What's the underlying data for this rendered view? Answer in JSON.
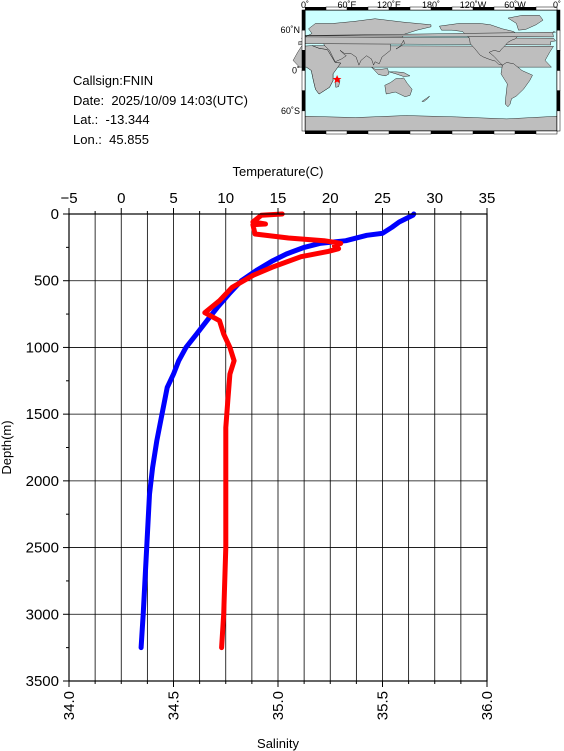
{
  "station": {
    "callsign_label": "Callsign:",
    "callsign": "FNIN",
    "date_label": "Date:",
    "date": "2025/10/09 14:03(UTC)",
    "lat_label": "Lat.:",
    "lat": "-13.344",
    "lon_label": "Lon.:",
    "lon": "45.855"
  },
  "map": {
    "lon_labels": [
      "0˚",
      "60˚E",
      "120˚E",
      "180˚",
      "120˚W",
      "60˚W",
      "0˚"
    ],
    "lat_labels": [
      "60˚N",
      "0˚",
      "60˚S"
    ],
    "ocean_color": "#ccffff",
    "land_color": "#bebebe",
    "marker_color": "#ff0000",
    "marker_icon": "star-icon"
  },
  "chart_data": {
    "type": "line",
    "depth_axis": {
      "label": "Depth(m)",
      "range": [
        0,
        3500
      ],
      "ticks": [
        "0",
        "500",
        "1000",
        "1500",
        "2000",
        "2500",
        "3000",
        "3500"
      ],
      "inverted": true
    },
    "temperature_axis": {
      "label": "Temperature(C)",
      "position": "top",
      "range": [
        -5,
        35
      ],
      "ticks": [
        "−5",
        "0",
        "5",
        "10",
        "15",
        "20",
        "25",
        "30",
        "35"
      ]
    },
    "salinity_axis": {
      "label": "Salinity",
      "position": "bottom",
      "range": [
        34.0,
        36.0
      ],
      "ticks": [
        "34.0",
        "34.5",
        "35.0",
        "35.5",
        "36.0"
      ]
    },
    "grid": true,
    "series": [
      {
        "color": "#0000ff",
        "axis": "temperature",
        "points": [
          [
            28.0,
            0
          ],
          [
            27.9,
            10
          ],
          [
            26.6,
            60
          ],
          [
            25.9,
            100
          ],
          [
            25.0,
            145
          ],
          [
            23.5,
            160
          ],
          [
            21.5,
            200
          ],
          [
            19.0,
            220
          ],
          [
            17.5,
            250
          ],
          [
            15.8,
            300
          ],
          [
            14.5,
            350
          ],
          [
            13.0,
            420
          ],
          [
            11.5,
            500
          ],
          [
            10.3,
            600
          ],
          [
            9.2,
            700
          ],
          [
            8.2,
            800
          ],
          [
            7.2,
            900
          ],
          [
            6.2,
            1000
          ],
          [
            5.5,
            1100
          ],
          [
            5.0,
            1200
          ],
          [
            4.4,
            1300
          ],
          [
            3.9,
            1500
          ],
          [
            3.4,
            1700
          ],
          [
            3.0,
            1900
          ],
          [
            2.7,
            2100
          ],
          [
            2.5,
            2400
          ],
          [
            2.3,
            2700
          ],
          [
            2.1,
            3000
          ],
          [
            1.9,
            3250
          ]
        ]
      },
      {
        "color": "#ff0000",
        "axis": "salinity",
        "points": [
          [
            35.02,
            0
          ],
          [
            34.92,
            10
          ],
          [
            34.88,
            60
          ],
          [
            34.94,
            75
          ],
          [
            34.88,
            80
          ],
          [
            34.89,
            150
          ],
          [
            35.05,
            180
          ],
          [
            35.22,
            200
          ],
          [
            35.3,
            220
          ],
          [
            35.27,
            240
          ],
          [
            35.29,
            260
          ],
          [
            35.24,
            280
          ],
          [
            35.11,
            320
          ],
          [
            34.97,
            400
          ],
          [
            34.88,
            460
          ],
          [
            34.78,
            550
          ],
          [
            34.72,
            650
          ],
          [
            34.65,
            740
          ],
          [
            34.72,
            800
          ],
          [
            34.74,
            900
          ],
          [
            34.77,
            1000
          ],
          [
            34.79,
            1100
          ],
          [
            34.77,
            1200
          ],
          [
            34.76,
            1400
          ],
          [
            34.75,
            1600
          ],
          [
            34.75,
            2000
          ],
          [
            34.75,
            2500
          ],
          [
            34.74,
            3000
          ],
          [
            34.73,
            3250
          ]
        ]
      }
    ]
  }
}
